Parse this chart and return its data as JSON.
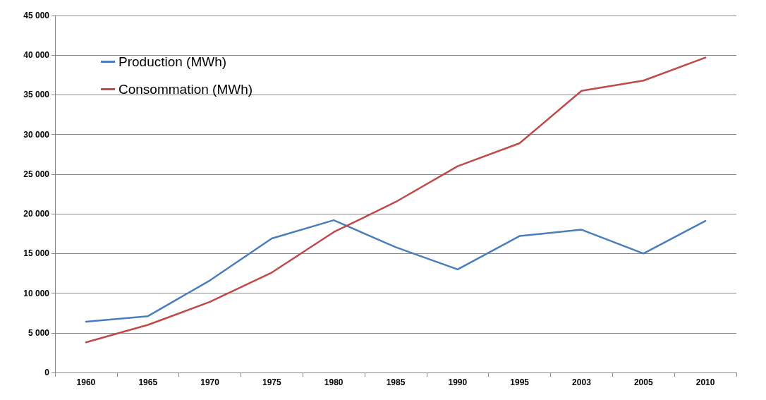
{
  "chart_data": {
    "type": "line",
    "categories": [
      "1960",
      "1965",
      "1970",
      "1975",
      "1980",
      "1985",
      "1990",
      "1995",
      "2003",
      "2005",
      "2010"
    ],
    "series": [
      {
        "name": "Production (MWh)",
        "color": "#4a7ebb",
        "values": [
          6400,
          7100,
          11600,
          16900,
          19200,
          15800,
          13000,
          17200,
          18000,
          15000,
          19100
        ]
      },
      {
        "name": "Consommation (MWh)",
        "color": "#be4b48",
        "values": [
          3800,
          6000,
          8900,
          12600,
          17700,
          21500,
          26000,
          28900,
          35500,
          36800,
          39700
        ]
      }
    ],
    "ylim": [
      0,
      45000
    ],
    "yticks": [
      0,
      {
        "value": 5000,
        "label": "5 000"
      },
      {
        "value": 10000,
        "label": "10 000"
      },
      {
        "value": 15000,
        "label": "15 000"
      },
      {
        "value": 20000,
        "label": "20 000"
      },
      {
        "value": 25000,
        "label": "25 000"
      },
      {
        "value": 30000,
        "label": "30 000"
      },
      {
        "value": 35000,
        "label": "35 000"
      },
      {
        "value": 40000,
        "label": "40 000"
      },
      {
        "value": 45000,
        "label": "45 000"
      }
    ],
    "grid": "y",
    "legend": "top left",
    "marker": "none",
    "line_style": "solid"
  }
}
